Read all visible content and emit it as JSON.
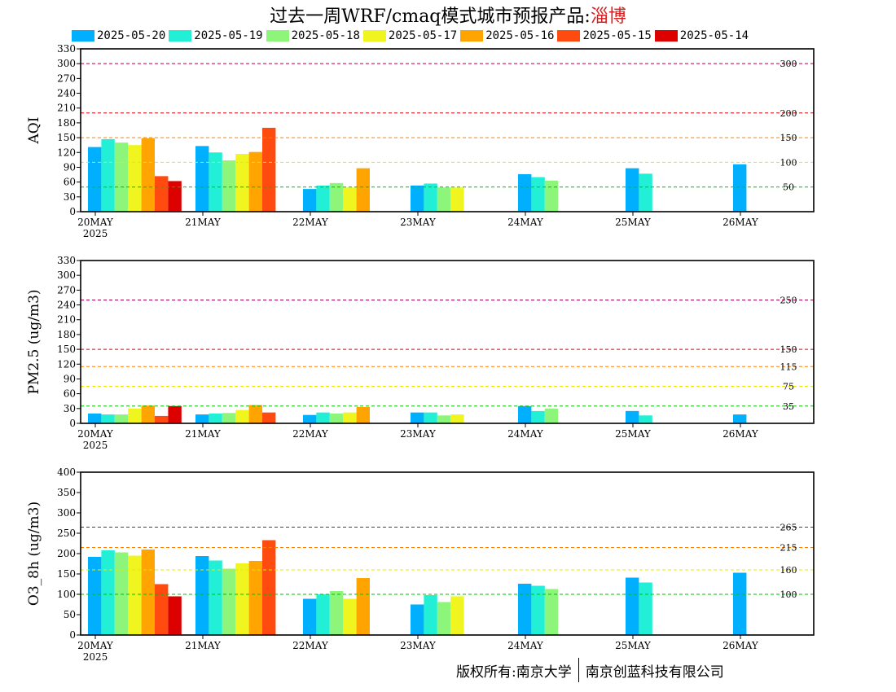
{
  "title": {
    "prefix": "过去一周WRF/cmaq模式城市预报产品:",
    "city": "淄博"
  },
  "footer": {
    "left": "版权所有:南京大学",
    "right": "南京创蓝科技有限公司"
  },
  "colors": {
    "2025-05-20": "#00b0ff",
    "2025-05-19": "#22f0d6",
    "2025-05-18": "#8cf57a",
    "2025-05-17": "#f0f520",
    "2025-05-16": "#ffa400",
    "2025-05-15": "#ff4a10",
    "2025-05-14": "#dd0000"
  },
  "chart_data": [
    {
      "type": "bar",
      "ylabel": "AQI",
      "ylim": [
        0,
        330
      ],
      "yticks": [
        0,
        30,
        60,
        90,
        120,
        150,
        180,
        210,
        240,
        270,
        300,
        330
      ],
      "categories": [
        "20MAY",
        "21MAY",
        "22MAY",
        "23MAY",
        "24MAY",
        "25MAY",
        "26MAY"
      ],
      "year_label": "2025",
      "series": [
        {
          "name": "2025-05-20",
          "values": [
            131,
            133,
            46,
            53,
            76,
            88,
            96
          ]
        },
        {
          "name": "2025-05-19",
          "values": [
            147,
            120,
            53,
            57,
            70,
            77,
            null
          ]
        },
        {
          "name": "2025-05-18",
          "values": [
            140,
            104,
            58,
            49,
            63,
            null,
            null
          ]
        },
        {
          "name": "2025-05-17",
          "values": [
            135,
            117,
            49,
            49,
            null,
            null,
            null
          ]
        },
        {
          "name": "2025-05-16",
          "values": [
            149,
            121,
            88,
            null,
            null,
            null,
            null
          ]
        },
        {
          "name": "2025-05-15",
          "values": [
            72,
            170,
            null,
            null,
            null,
            null,
            null
          ]
        },
        {
          "name": "2025-05-14",
          "values": [
            62,
            null,
            null,
            null,
            null,
            null,
            null
          ]
        }
      ],
      "thresholds": [
        {
          "value": 300,
          "label": "300",
          "color": "#b0004a"
        },
        {
          "value": 200,
          "label": "200",
          "color": "#e00000"
        },
        {
          "value": 150,
          "label": "150",
          "color": "#ff8000"
        },
        {
          "value": 100,
          "label": "100",
          "color": "#e8e800"
        },
        {
          "value": 50,
          "label": "50",
          "color": "#00c000"
        }
      ]
    },
    {
      "type": "bar",
      "ylabel": "PM2.5 (ug/m3)",
      "ylim": [
        0,
        330
      ],
      "yticks": [
        0,
        30,
        60,
        90,
        120,
        150,
        180,
        210,
        240,
        270,
        300,
        330
      ],
      "categories": [
        "20MAY",
        "21MAY",
        "22MAY",
        "23MAY",
        "24MAY",
        "25MAY",
        "26MAY"
      ],
      "year_label": "2025",
      "series": [
        {
          "name": "2025-05-20",
          "values": [
            20,
            18,
            17,
            22,
            35,
            25,
            18
          ]
        },
        {
          "name": "2025-05-19",
          "values": [
            18,
            20,
            22,
            22,
            25,
            16,
            null
          ]
        },
        {
          "name": "2025-05-18",
          "values": [
            18,
            21,
            20,
            16,
            30,
            null,
            null
          ]
        },
        {
          "name": "2025-05-17",
          "values": [
            30,
            27,
            22,
            18,
            null,
            null,
            null
          ]
        },
        {
          "name": "2025-05-16",
          "values": [
            36,
            37,
            33,
            null,
            null,
            null,
            null
          ]
        },
        {
          "name": "2025-05-15",
          "values": [
            15,
            22,
            null,
            null,
            null,
            null,
            null
          ]
        },
        {
          "name": "2025-05-14",
          "values": [
            35,
            null,
            null,
            null,
            null,
            null,
            null
          ]
        }
      ],
      "thresholds": [
        {
          "value": 250,
          "label": "250",
          "color": "#b0004a"
        },
        {
          "value": 150,
          "label": "150",
          "color": "#e00000"
        },
        {
          "value": 115,
          "label": "115",
          "color": "#ff8000"
        },
        {
          "value": 75,
          "label": "75",
          "color": "#e8e800"
        },
        {
          "value": 35,
          "label": "35",
          "color": "#00c000"
        }
      ]
    },
    {
      "type": "bar",
      "ylabel": "O3_8h (ug/m3)",
      "ylim": [
        0,
        400
      ],
      "yticks": [
        0,
        50,
        100,
        150,
        200,
        250,
        300,
        350,
        400
      ],
      "categories": [
        "20MAY",
        "21MAY",
        "22MAY",
        "23MAY",
        "24MAY",
        "25MAY",
        "26MAY"
      ],
      "year_label": "2025",
      "series": [
        {
          "name": "2025-05-20",
          "values": [
            192,
            194,
            89,
            75,
            126,
            141,
            153
          ]
        },
        {
          "name": "2025-05-19",
          "values": [
            208,
            183,
            100,
            98,
            121,
            129,
            null
          ]
        },
        {
          "name": "2025-05-18",
          "values": [
            203,
            163,
            108,
            81,
            113,
            null,
            null
          ]
        },
        {
          "name": "2025-05-17",
          "values": [
            195,
            176,
            89,
            95,
            null,
            null,
            null
          ]
        },
        {
          "name": "2025-05-16",
          "values": [
            210,
            182,
            140,
            null,
            null,
            null,
            null
          ]
        },
        {
          "name": "2025-05-15",
          "values": [
            125,
            233,
            null,
            null,
            null,
            null,
            null
          ]
        },
        {
          "name": "2025-05-14",
          "values": [
            95,
            null,
            null,
            null,
            null,
            null,
            null
          ]
        }
      ],
      "thresholds": [
        {
          "value": 265,
          "label": "265",
          "color": "#e00000"
        },
        {
          "value": 215,
          "label": "215",
          "color": "#ff8000"
        },
        {
          "value": 160,
          "label": "160",
          "color": "#e8e800"
        },
        {
          "value": 100,
          "label": "100",
          "color": "#00c000"
        }
      ]
    }
  ]
}
